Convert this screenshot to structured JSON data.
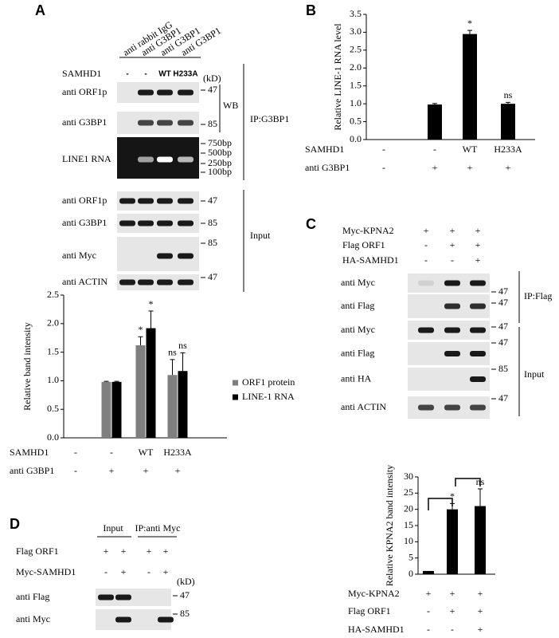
{
  "figure": {
    "panel_labels": [
      "A",
      "B",
      "C",
      "D"
    ],
    "a": {
      "lanes": [
        "anti rabbit IgG",
        "anti G3BP1",
        "anti G3BP1",
        "anti G3BP1"
      ],
      "condition": {
        "name": "SAMHD1",
        "values": [
          "-",
          "-",
          "WT",
          "H233A"
        ]
      },
      "unit": "(kD)",
      "ip_rows": [
        {
          "label": "anti ORF1p",
          "marker": "47"
        },
        {
          "label": "anti G3BP1",
          "marker": "85"
        },
        {
          "label": "LINE1 RNA",
          "markers": [
            "750bp",
            "500bp",
            "250bp",
            "100bp"
          ]
        }
      ],
      "wb": "WB",
      "ip": "IP:G3BP1",
      "input_rows": [
        {
          "label": "anti ORF1p",
          "marker": "47"
        },
        {
          "label": "anti G3BP1",
          "marker": "85"
        },
        {
          "label": "anti Myc",
          "marker": "85"
        },
        {
          "label": "anti ACTIN",
          "marker": "47"
        }
      ],
      "input": "Input"
    },
    "c": {
      "conditions": [
        {
          "name": "Myc-KPNA2",
          "values": [
            "+",
            "+",
            "+"
          ]
        },
        {
          "name": "Flag ORF1",
          "values": [
            "-",
            "+",
            "+"
          ]
        },
        {
          "name": "HA-SAMHD1",
          "values": [
            "-",
            "-",
            "+"
          ]
        }
      ],
      "ip_rows": [
        {
          "label": "anti Myc",
          "marker": "47"
        },
        {
          "label": "anti Flag",
          "marker": "47"
        }
      ],
      "ip": "IP:Flag",
      "input_rows": [
        {
          "label": "anti Myc",
          "marker": "47"
        },
        {
          "label": "anti Flag",
          "marker": "47"
        },
        {
          "label": "anti HA",
          "marker": "85"
        },
        {
          "label": "anti ACTIN",
          "marker": "47"
        }
      ],
      "input": "Input"
    },
    "d": {
      "groups": [
        "Input",
        "IP:anti Myc"
      ],
      "conditions": [
        {
          "name": "Flag ORF1",
          "values": [
            "+",
            "+",
            "+",
            "+"
          ]
        },
        {
          "name": "Myc-SAMHD1",
          "values": [
            "-",
            "+",
            "-",
            "+"
          ]
        }
      ],
      "unit": "(kD)",
      "rows": [
        {
          "label": "anti Flag",
          "marker": "47"
        },
        {
          "label": "anti Myc",
          "marker": "85"
        }
      ]
    }
  },
  "chart_data": [
    {
      "type": "bar",
      "y_label": "Relative band intensity",
      "categories": [
        null,
        null,
        null,
        null
      ],
      "conditions": [
        {
          "name": "SAMHD1",
          "values": [
            "-",
            "-",
            "WT",
            "H233A"
          ]
        },
        {
          "name": "anti G3BP1",
          "values": [
            "-",
            "+",
            "+",
            "+"
          ]
        }
      ],
      "series": [
        {
          "name": "ORF1 protein",
          "color": "#7f7f7f",
          "values": [
            0,
            0.98,
            1.62,
            1.1
          ],
          "errors": [
            0,
            0.01,
            0.15,
            0.27
          ],
          "annotations": [
            null,
            null,
            "*",
            "ns"
          ]
        },
        {
          "name": "LINE-1 RNA",
          "color": "#000000",
          "values": [
            0,
            0.98,
            1.92,
            1.17
          ],
          "errors": [
            0,
            0.01,
            0.3,
            0.32
          ],
          "annotations": [
            null,
            null,
            "*",
            "ns"
          ]
        }
      ],
      "ylim": [
        0,
        2.5
      ],
      "yticks": [
        {
          "value": 0,
          "label": "0.0"
        },
        0.5,
        {
          "value": 1,
          "label": "1.0"
        },
        1.5,
        {
          "value": 2,
          "label": "2.0"
        },
        2.5
      ],
      "legend": "right",
      "grid": false
    },
    {
      "type": "bar",
      "y_label": "Relative LINE-1 RNA level",
      "categories": [
        null,
        null,
        null,
        null
      ],
      "conditions": [
        {
          "name": "SAMHD1",
          "values": [
            "-",
            "-",
            "WT",
            "H233A"
          ]
        },
        {
          "name": "anti G3BP1",
          "values": [
            "-",
            "+",
            "+",
            "+"
          ]
        }
      ],
      "values": [
        0,
        0.98,
        2.95,
        1.0
      ],
      "errors": [
        0,
        0.03,
        0.1,
        0.04
      ],
      "annotations": [
        null,
        null,
        "*",
        "ns"
      ],
      "color": "#000000",
      "ylim": [
        0,
        3.5
      ],
      "yticks": [
        {
          "value": 0,
          "label": "0.0"
        },
        0.5,
        {
          "value": 1,
          "label": "1.0"
        },
        1.5,
        {
          "value": 2,
          "label": "2.0"
        },
        2.5,
        {
          "value": 3,
          "label": "3.0"
        },
        3.5
      ],
      "grid": false
    },
    {
      "type": "bar",
      "y_label": "Relative KPNA2 band intensity",
      "categories": [
        null,
        null,
        null
      ],
      "conditions": [
        {
          "name": "Myc-KPNA2",
          "values": [
            "+",
            "+",
            "+"
          ]
        },
        {
          "name": "Flag ORF1",
          "values": [
            "-",
            "+",
            "+"
          ]
        },
        {
          "name": "HA-SAMHD1",
          "values": [
            "-",
            "-",
            "+"
          ]
        }
      ],
      "values": [
        1,
        20,
        21
      ],
      "errors": [
        0,
        1.8,
        5.3
      ],
      "annotations": [
        null,
        "*",
        "ns"
      ],
      "color": "#000000",
      "ylim": [
        0,
        30
      ],
      "yticks": [
        0,
        5,
        10,
        15,
        20,
        25,
        30
      ],
      "grid": false
    }
  ]
}
